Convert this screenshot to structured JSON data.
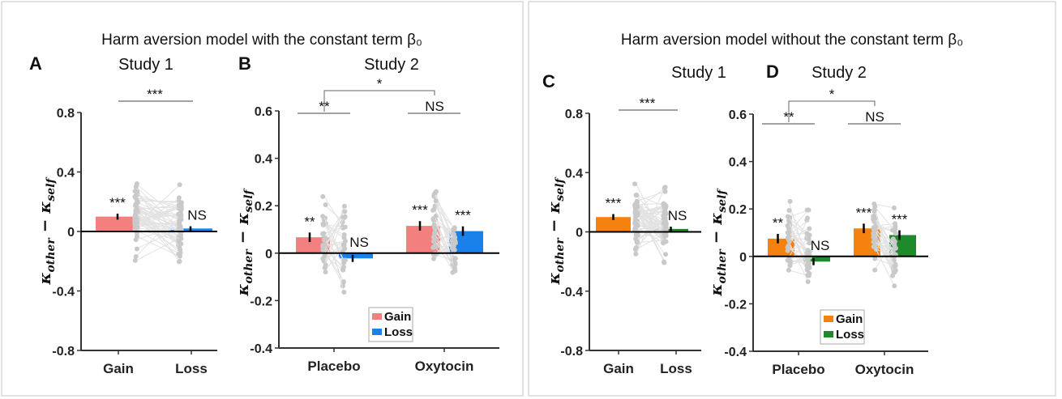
{
  "figure": {
    "left_title": "Harm aversion model  with the constant term β₀",
    "right_title": "Harm aversion model without the constant term β₀"
  },
  "chart_data": [
    {
      "panel": "A",
      "subtitle": "Study 1",
      "type": "bar",
      "categories": [
        "Gain",
        "Loss"
      ],
      "values": [
        0.1,
        0.02
      ],
      "errors": [
        0.02,
        0.015
      ],
      "colors": [
        "#f47f7f",
        "#1a80ea"
      ],
      "bar_significance": [
        "***",
        "NS"
      ],
      "comparison": "***",
      "ylabel": {
        "symbol": "κ",
        "sub1": "other",
        "op": " − ",
        "sub2": "self"
      },
      "ylim": [
        -0.8,
        0.8
      ],
      "yticks": [
        "0.8",
        "0.4",
        "0",
        "-0.4",
        "-0.8"
      ],
      "ytick_values": [
        0.8,
        0.4,
        0,
        -0.4,
        -0.8
      ],
      "grid": false
    },
    {
      "panel": "B",
      "subtitle": "Study 2",
      "type": "bar",
      "categories": [
        "Placebo",
        "Oxytocin"
      ],
      "series": [
        {
          "name": "Gain",
          "values": [
            0.067,
            0.115
          ],
          "errors": [
            0.02,
            0.02
          ],
          "color": "#f47f7f",
          "significance": [
            "**",
            "***"
          ]
        },
        {
          "name": "Loss",
          "values": [
            -0.022,
            0.093
          ],
          "errors": [
            0.015,
            0.02
          ],
          "color": "#1a80ea",
          "significance": [
            "NS",
            "***"
          ]
        }
      ],
      "group_comparisons": [
        "**",
        "NS"
      ],
      "interaction": "*",
      "ylabel": {
        "symbol": "κ",
        "sub1": "other",
        "op": " − ",
        "sub2": "self"
      },
      "ylim": [
        -0.4,
        0.6
      ],
      "yticks": [
        "0.6",
        "0.4",
        "0.2",
        "0",
        "-0.2",
        "-0.4"
      ],
      "ytick_values": [
        0.6,
        0.4,
        0.2,
        0,
        -0.2,
        -0.4
      ],
      "legend": "bottom-right",
      "grid": false
    },
    {
      "panel": "C",
      "subtitle": "Study 1",
      "type": "bar",
      "categories": [
        "Gain",
        "Loss"
      ],
      "values": [
        0.1,
        0.02
      ],
      "errors": [
        0.02,
        0.015
      ],
      "colors": [
        "#f5820f",
        "#1e8a2b"
      ],
      "bar_significance": [
        "***",
        "NS"
      ],
      "comparison": "***",
      "ylabel": {
        "symbol": "κ",
        "sub1": "other",
        "op": " − ",
        "sub2": "self"
      },
      "ylim": [
        -0.8,
        0.8
      ],
      "yticks": [
        "0.8",
        "0.4",
        "0",
        "-0.4",
        "-0.8"
      ],
      "ytick_values": [
        0.8,
        0.4,
        0,
        -0.4,
        -0.8
      ],
      "grid": false
    },
    {
      "panel": "D",
      "subtitle": "Study 2",
      "type": "bar",
      "categories": [
        "Placebo",
        "Oxytocin"
      ],
      "series": [
        {
          "name": "Gain",
          "values": [
            0.075,
            0.118
          ],
          "errors": [
            0.02,
            0.02
          ],
          "color": "#f5820f",
          "significance": [
            "**",
            "***"
          ]
        },
        {
          "name": "Loss",
          "values": [
            -0.022,
            0.09
          ],
          "errors": [
            0.015,
            0.02
          ],
          "color": "#1e8a2b",
          "significance": [
            "NS",
            "***"
          ]
        }
      ],
      "group_comparisons": [
        "**",
        "NS"
      ],
      "interaction": "*",
      "ylabel": {
        "symbol": "κ",
        "sub1": "other",
        "op": " − ",
        "sub2": "self"
      },
      "ylim": [
        -0.4,
        0.6
      ],
      "yticks": [
        "0.6",
        "0.4",
        "0.2",
        "0",
        "-0.2",
        "-0.4"
      ],
      "ytick_values": [
        0.6,
        0.4,
        0.2,
        0,
        -0.2,
        -0.4
      ],
      "legend": "bottom-right",
      "grid": false
    }
  ]
}
